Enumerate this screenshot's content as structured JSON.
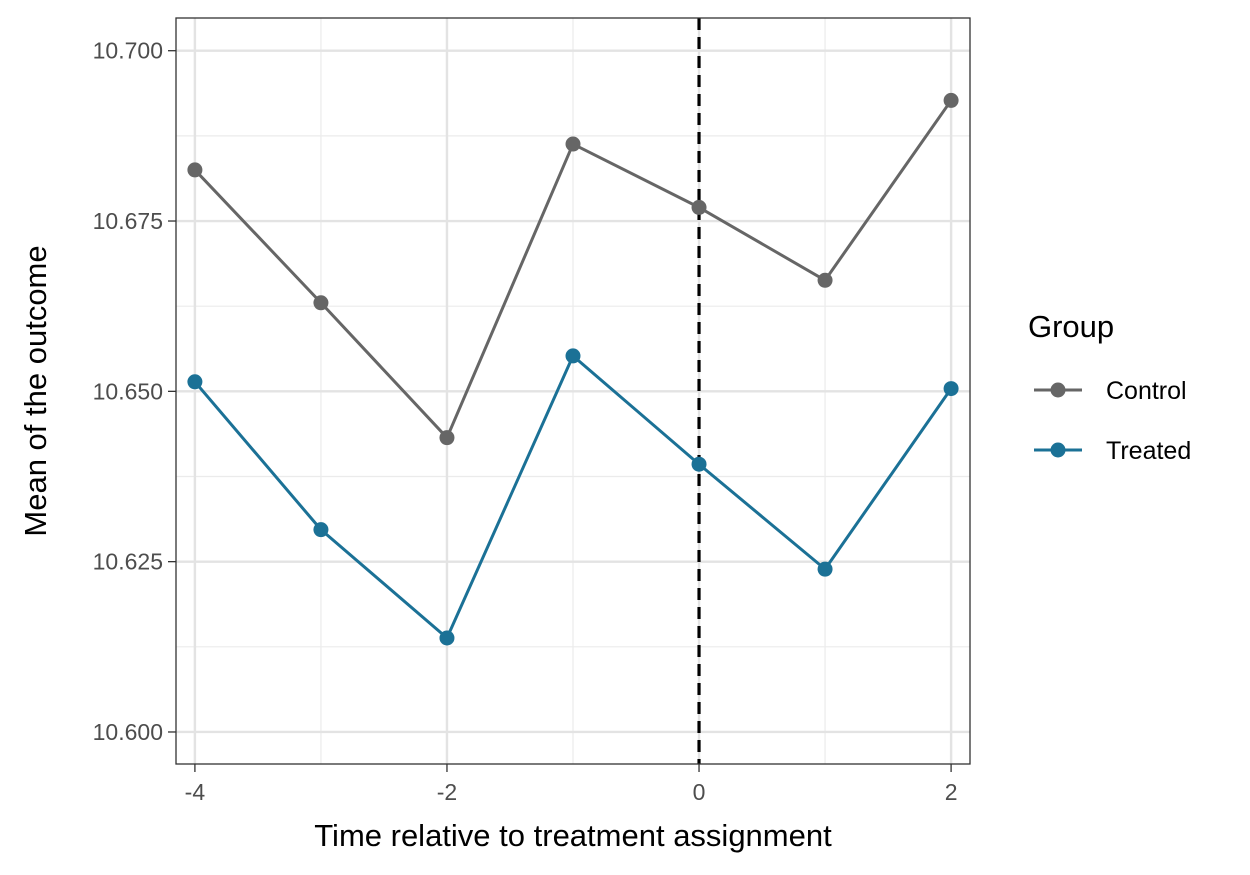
{
  "chart_data": {
    "type": "line",
    "x": [
      -4,
      -3,
      -2,
      -1,
      0,
      1,
      2
    ],
    "series": [
      {
        "name": "Control",
        "color": "#666666",
        "values": [
          10.6825,
          10.663,
          10.6432,
          10.6863,
          10.677,
          10.6663,
          10.6927
        ]
      },
      {
        "name": "Treated",
        "color": "#1b7196",
        "values": [
          10.6514,
          10.6297,
          10.6138,
          10.6552,
          10.6393,
          10.6239,
          10.6504
        ]
      }
    ],
    "xlabel": "Time relative to treatment assignment",
    "ylabel": "Mean of the outcome",
    "xlim": [
      -4.15,
      2.15
    ],
    "ylim": [
      10.5953,
      10.7048
    ],
    "x_ticks": [
      -4,
      -2,
      0,
      2
    ],
    "x_tick_labels": [
      "-4",
      "-2",
      "0",
      "2"
    ],
    "y_ticks": [
      10.6,
      10.625,
      10.65,
      10.675,
      10.7
    ],
    "y_tick_labels": [
      "10.600",
      "10.625",
      "10.650",
      "10.675",
      "10.700"
    ],
    "reference_line": {
      "x": 0,
      "style": "dashed",
      "color": "#000000"
    },
    "grid": true,
    "legend": {
      "title": "Group",
      "placement": "right"
    }
  }
}
